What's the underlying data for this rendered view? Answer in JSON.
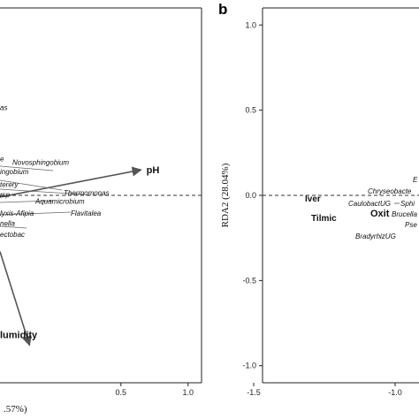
{
  "chart_data": [
    {
      "type": "scatter",
      "panel_label": "",
      "xlabel": ".57%)",
      "ylabel": "",
      "xlim": [
        -0.4,
        1.1
      ],
      "ylim": [
        -1.1,
        1.1
      ],
      "x_ticks": [
        "0.5",
        "1.0"
      ],
      "zero_lines": "dashed",
      "grid": false,
      "taxa": [
        {
          "label": "as",
          "x": -0.4,
          "y": 0.5
        },
        {
          "label": "e",
          "x": -0.4,
          "y": 0.2
        },
        {
          "label": "Novosphingobium",
          "x": -0.4,
          "y": 0.18
        },
        {
          "label": "ingobium",
          "x": -0.4,
          "y": 0.125
        },
        {
          "label": "terery",
          "x": -0.4,
          "y": 0.05
        },
        {
          "label": "rsp",
          "x": -0.4,
          "y": -0.01
        },
        {
          "label": "Thermomonas",
          "x": -0.4,
          "y": 0.0
        },
        {
          "label": "Aquamicrobium",
          "x": -0.4,
          "y": -0.05
        },
        {
          "label": "lyxis-Afipia",
          "x": -0.4,
          "y": -0.12
        },
        {
          "label": "Flavitalea",
          "x": -0.4,
          "y": -0.12
        },
        {
          "label": "nella",
          "x": -0.4,
          "y": -0.18
        },
        {
          "label": "ectobac",
          "x": -0.4,
          "y": -0.245
        }
      ],
      "environmental_vectors": [
        {
          "name": "pH",
          "x": 0.65,
          "y": 0.15
        },
        {
          "name": "lumidity",
          "x": -0.18,
          "y": -0.88
        }
      ]
    },
    {
      "type": "scatter",
      "panel_label": "b",
      "xlabel": "",
      "ylabel": "RDA2 (28.04%)",
      "xlim": [
        -1.6,
        -0.6
      ],
      "ylim": [
        -1.1,
        1.1
      ],
      "x_ticks": [
        "-1.5",
        "-1.0"
      ],
      "y_ticks": [
        "1.0",
        "0.5",
        "0.0",
        "-0.5",
        "-1.0"
      ],
      "zero_lines": "dashed",
      "grid": false,
      "taxa": [
        {
          "label": "E",
          "x": -0.6,
          "y": 0.2
        },
        {
          "label": "Chryseobacte",
          "x": -0.6,
          "y": 0.07
        },
        {
          "label": "CaulobactUG",
          "x": -0.6,
          "y": 0.0
        },
        {
          "label": "Sphi",
          "x": -0.6,
          "y": 0.0
        },
        {
          "label": "Brucella",
          "x": -0.6,
          "y": -0.07
        },
        {
          "label": "Pse",
          "x": -0.6,
          "y": -0.13
        },
        {
          "label": "BradyrhizUG",
          "x": -0.6,
          "y": -0.2
        }
      ],
      "sample_labels": [
        {
          "label": "Iver",
          "x": -1.29,
          "y": 0.0
        },
        {
          "label": "Oxit",
          "x": -1.07,
          "y": -0.07
        },
        {
          "label": "Tilmic",
          "x": -1.25,
          "y": -0.1
        }
      ]
    }
  ]
}
